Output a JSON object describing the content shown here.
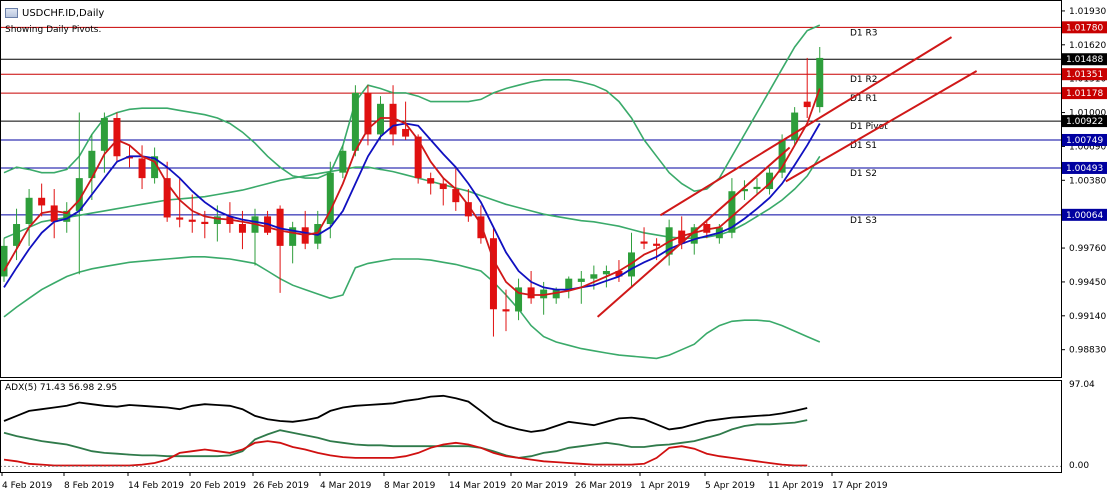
{
  "header": {
    "symbol_label": "USDCHF.ID,Daily",
    "subtitle": "Showing Daily Pivots."
  },
  "adx_label": "ADX(5) 71.43 56.98 2.95",
  "colors": {
    "bull": "#2e9e3b",
    "bear": "#e01010",
    "ma_fast": "#d01818",
    "ma_slow": "#1010c0",
    "bollinger": "#3aaa6a",
    "pivot_resistance": "#c80000",
    "pivot_support": "#0000a0",
    "pivot_black": "#000000",
    "trendline": "#d01818",
    "adx_main": "#000000",
    "adx_plus": "#2f7a4a",
    "adx_minus": "#d01010"
  },
  "chart_data": [
    {
      "type": "candlestick",
      "title": "USDCHF.ID,Daily",
      "ylim": [
        0.9858,
        1.0203
      ],
      "y_ticks": [
        "1.01930",
        "1.01620",
        "1.01310",
        "1.01000",
        "1.00690",
        "1.00380",
        "1.00070",
        "0.99760",
        "0.99450",
        "0.99140",
        "0.98830"
      ],
      "x_ticks": [
        "4 Feb 2019",
        "8 Feb 2019",
        "14 Feb 2019",
        "20 Feb 2019",
        "26 Feb 2019",
        "4 Mar 2019",
        "8 Mar 2019",
        "14 Mar 2019",
        "20 Mar 2019",
        "26 Mar 2019",
        "1 Apr 2019",
        "5 Apr 2019",
        "11 Apr 2019",
        "17 Apr 2019"
      ],
      "pivot_levels": [
        {
          "name": "D1 R3",
          "value": 1.0178,
          "label": "1.01780",
          "kind": "resistance"
        },
        {
          "name": "D1 R2",
          "value": 1.01351,
          "label": "1.01351",
          "kind": "resistance"
        },
        {
          "name": "D1 R1",
          "value": 1.01178,
          "label": "1.01178",
          "kind": "resistance"
        },
        {
          "name": "D1 Pivot",
          "value": 1.00922,
          "label": "1.00922",
          "kind": "black"
        },
        {
          "name": "D1 S1",
          "value": 1.00749,
          "label": "1.00749",
          "kind": "support"
        },
        {
          "name": "D1 S2",
          "value": 1.00493,
          "label": "1.00493",
          "kind": "support"
        },
        {
          "name": "D1 S3",
          "value": 1.00064,
          "label": "1.00064",
          "kind": "support"
        }
      ],
      "current_price": {
        "value": 1.01488,
        "label": "1.01488"
      },
      "candles": [
        {
          "o": 0.995,
          "h": 0.9985,
          "l": 0.9945,
          "c": 0.9978
        },
        {
          "o": 0.9978,
          "h": 1.0012,
          "l": 0.9965,
          "c": 0.9998
        },
        {
          "o": 0.9998,
          "h": 1.003,
          "l": 0.9978,
          "c": 1.0022
        },
        {
          "o": 1.0022,
          "h": 1.0035,
          "l": 1.0005,
          "c": 1.0015
        },
        {
          "o": 1.0015,
          "h": 1.003,
          "l": 0.9985,
          "c": 1.0
        },
        {
          "o": 1.0,
          "h": 1.0018,
          "l": 0.999,
          "c": 1.001
        },
        {
          "o": 1.001,
          "h": 1.01,
          "l": 0.9952,
          "c": 1.004
        },
        {
          "o": 1.004,
          "h": 1.008,
          "l": 1.002,
          "c": 1.0065
        },
        {
          "o": 1.0065,
          "h": 1.01,
          "l": 1.0045,
          "c": 1.0095
        },
        {
          "o": 1.0095,
          "h": 1.01,
          "l": 1.0055,
          "c": 1.006
        },
        {
          "o": 1.006,
          "h": 1.007,
          "l": 1.005,
          "c": 1.0058
        },
        {
          "o": 1.0058,
          "h": 1.007,
          "l": 1.003,
          "c": 1.004
        },
        {
          "o": 1.004,
          "h": 1.0068,
          "l": 1.0035,
          "c": 1.006
        },
        {
          "o": 1.004,
          "h": 1.0055,
          "l": 1.0,
          "c": 1.0004
        },
        {
          "o": 1.0004,
          "h": 1.004,
          "l": 0.9995,
          "c": 1.0002
        },
        {
          "o": 1.0002,
          "h": 1.0025,
          "l": 0.999,
          "c": 1.0
        },
        {
          "o": 1.0,
          "h": 1.001,
          "l": 0.9985,
          "c": 0.9998
        },
        {
          "o": 0.9998,
          "h": 1.0015,
          "l": 0.9982,
          "c": 1.0005
        },
        {
          "o": 1.0005,
          "h": 1.0018,
          "l": 0.999,
          "c": 0.9998
        },
        {
          "o": 0.9998,
          "h": 1.001,
          "l": 0.9975,
          "c": 0.999
        },
        {
          "o": 0.999,
          "h": 1.0012,
          "l": 0.996,
          "c": 1.0005
        },
        {
          "o": 1.0005,
          "h": 1.001,
          "l": 0.9988,
          "c": 0.999
        },
        {
          "o": 1.0012,
          "h": 1.0015,
          "l": 0.9935,
          "c": 0.9978
        },
        {
          "o": 0.9978,
          "h": 1.0,
          "l": 0.9962,
          "c": 0.9995
        },
        {
          "o": 0.9995,
          "h": 1.001,
          "l": 0.9975,
          "c": 0.998
        },
        {
          "o": 0.998,
          "h": 1.001,
          "l": 0.9975,
          "c": 0.9998
        },
        {
          "o": 0.9998,
          "h": 1.0055,
          "l": 0.9985,
          "c": 1.0045
        },
        {
          "o": 1.0045,
          "h": 1.007,
          "l": 1.004,
          "c": 1.0065
        },
        {
          "o": 1.0065,
          "h": 1.0125,
          "l": 1.006,
          "c": 1.0118
        },
        {
          "o": 1.0118,
          "h": 1.0125,
          "l": 1.007,
          "c": 1.008
        },
        {
          "o": 1.008,
          "h": 1.0115,
          "l": 1.0075,
          "c": 1.0108
        },
        {
          "o": 1.0108,
          "h": 1.0125,
          "l": 1.007,
          "c": 1.008
        },
        {
          "o": 1.0085,
          "h": 1.011,
          "l": 1.0075,
          "c": 1.0078
        },
        {
          "o": 1.0078,
          "h": 1.008,
          "l": 1.0035,
          "c": 1.004
        },
        {
          "o": 1.004,
          "h": 1.0045,
          "l": 1.0025,
          "c": 1.0035
        },
        {
          "o": 1.0035,
          "h": 1.004,
          "l": 1.0015,
          "c": 1.003
        },
        {
          "o": 1.003,
          "h": 1.005,
          "l": 1.001,
          "c": 1.0018
        },
        {
          "o": 1.0018,
          "h": 1.003,
          "l": 1.0,
          "c": 1.0005
        },
        {
          "o": 1.0005,
          "h": 1.0015,
          "l": 0.998,
          "c": 0.9985
        },
        {
          "o": 0.9985,
          "h": 0.9995,
          "l": 0.9895,
          "c": 0.992
        },
        {
          "o": 0.992,
          "h": 0.9938,
          "l": 0.99,
          "c": 0.9918
        },
        {
          "o": 0.9918,
          "h": 0.9948,
          "l": 0.991,
          "c": 0.994
        },
        {
          "o": 0.994,
          "h": 0.9955,
          "l": 0.9925,
          "c": 0.993
        },
        {
          "o": 0.993,
          "h": 0.9945,
          "l": 0.9915,
          "c": 0.9938
        },
        {
          "o": 0.993,
          "h": 0.994,
          "l": 0.9925,
          "c": 0.9938
        },
        {
          "o": 0.9938,
          "h": 0.995,
          "l": 0.993,
          "c": 0.9948
        },
        {
          "o": 0.9945,
          "h": 0.9955,
          "l": 0.9925,
          "c": 0.9948
        },
        {
          "o": 0.9948,
          "h": 0.996,
          "l": 0.9938,
          "c": 0.9952
        },
        {
          "o": 0.9952,
          "h": 0.996,
          "l": 0.994,
          "c": 0.9955
        },
        {
          "o": 0.9955,
          "h": 0.9965,
          "l": 0.9945,
          "c": 0.995
        },
        {
          "o": 0.995,
          "h": 0.999,
          "l": 0.994,
          "c": 0.9972
        },
        {
          "o": 0.9982,
          "h": 0.9995,
          "l": 0.9975,
          "c": 0.998
        },
        {
          "o": 0.998,
          "h": 0.9985,
          "l": 0.9965,
          "c": 0.9978
        },
        {
          "o": 0.997,
          "h": 1.0002,
          "l": 0.996,
          "c": 0.9995
        },
        {
          "o": 0.9992,
          "h": 1.0005,
          "l": 0.9975,
          "c": 0.998
        },
        {
          "o": 0.998,
          "h": 0.9998,
          "l": 0.997,
          "c": 0.9995
        },
        {
          "o": 0.9998,
          "h": 1.0002,
          "l": 0.9985,
          "c": 0.999
        },
        {
          "o": 0.9985,
          "h": 0.9998,
          "l": 0.998,
          "c": 0.9995
        },
        {
          "o": 0.999,
          "h": 1.004,
          "l": 0.9985,
          "c": 1.0028
        },
        {
          "o": 1.0028,
          "h": 1.0038,
          "l": 1.002,
          "c": 1.003
        },
        {
          "o": 1.003,
          "h": 1.004,
          "l": 1.0025,
          "c": 1.0032
        },
        {
          "o": 1.003,
          "h": 1.005,
          "l": 1.0025,
          "c": 1.0045
        },
        {
          "o": 1.0045,
          "h": 1.008,
          "l": 1.004,
          "c": 1.0075
        },
        {
          "o": 1.0075,
          "h": 1.0105,
          "l": 1.007,
          "c": 1.01
        },
        {
          "o": 1.011,
          "h": 1.015,
          "l": 1.0095,
          "c": 1.0105
        },
        {
          "o": 1.0105,
          "h": 1.016,
          "l": 1.01,
          "c": 1.015
        }
      ],
      "ma_fast": [
        0.9955,
        0.9975,
        0.9995,
        1.0008,
        1.001,
        1.0008,
        1.002,
        1.004,
        1.0062,
        1.0075,
        1.007,
        1.006,
        1.0055,
        1.0035,
        1.002,
        1.001,
        1.0005,
        1.0003,
        1.0002,
        1.0,
        0.9998,
        0.9995,
        0.9992,
        0.999,
        0.9988,
        0.999,
        1.001,
        1.0035,
        1.0065,
        1.0085,
        1.0095,
        1.0095,
        1.009,
        1.0075,
        1.0055,
        1.004,
        1.003,
        1.0015,
        0.9998,
        0.9965,
        0.9945,
        0.9935,
        0.9933,
        0.9933,
        0.9935,
        0.9937,
        0.994,
        0.9945,
        0.995,
        0.9955,
        0.9962,
        0.997,
        0.9975,
        0.9982,
        0.9987,
        0.999,
        0.9993,
        0.9995,
        1.0005,
        1.0015,
        1.0025,
        1.0035,
        1.005,
        1.007,
        1.009,
        1.0122
      ],
      "ma_slow": [
        0.994,
        0.9958,
        0.9975,
        0.999,
        1.0,
        1.0003,
        1.001,
        1.0025,
        1.004,
        1.0055,
        1.006,
        1.006,
        1.0058,
        1.005,
        1.004,
        1.0028,
        1.0018,
        1.001,
        1.0005,
        1.0002,
        1.0,
        0.9998,
        0.9994,
        0.9992,
        0.999,
        0.9988,
        0.9995,
        1.001,
        1.0035,
        1.006,
        1.0078,
        1.0088,
        1.009,
        1.0088,
        1.0075,
        1.0062,
        1.005,
        1.0035,
        1.0018,
        0.9995,
        0.9972,
        0.9955,
        0.9945,
        0.994,
        0.9938,
        0.9938,
        0.994,
        0.9942,
        0.9946,
        0.995,
        0.9957,
        0.9963,
        0.9968,
        0.9975,
        0.998,
        0.9984,
        0.9987,
        0.999,
        0.9995,
        1.0003,
        1.0012,
        1.0022,
        1.0035,
        1.0052,
        1.007,
        1.009
      ],
      "bb_upper": [
        1.0045,
        1.005,
        1.0048,
        1.0045,
        1.0045,
        1.0048,
        1.006,
        1.008,
        1.0095,
        1.01,
        1.0103,
        1.0104,
        1.0104,
        1.0104,
        1.0102,
        1.01,
        1.0098,
        1.0095,
        1.009,
        1.0082,
        1.0072,
        1.006,
        1.005,
        1.0042,
        1.004,
        1.004,
        1.0045,
        1.007,
        1.011,
        1.0125,
        1.0122,
        1.0118,
        1.0118,
        1.0115,
        1.011,
        1.011,
        1.011,
        1.011,
        1.0112,
        1.0118,
        1.0122,
        1.0125,
        1.0128,
        1.013,
        1.013,
        1.013,
        1.0128,
        1.0125,
        1.012,
        1.011,
        1.0095,
        1.0075,
        1.006,
        1.0045,
        1.0035,
        1.0028,
        1.003,
        1.004,
        1.006,
        1.008,
        1.01,
        1.012,
        1.014,
        1.016,
        1.0175,
        1.018
      ],
      "bb_mid": [
        0.9985,
        0.999,
        0.9995,
        1.0,
        1.0002,
        1.0004,
        1.0006,
        1.0008,
        1.001,
        1.0012,
        1.0014,
        1.0016,
        1.0018,
        1.002,
        1.0021,
        1.0022,
        1.0023,
        1.0025,
        1.0027,
        1.0029,
        1.0032,
        1.0035,
        1.0038,
        1.004,
        1.0042,
        1.0044,
        1.0046,
        1.0048,
        1.005,
        1.005,
        1.0048,
        1.0046,
        1.0043,
        1.004,
        1.0037,
        1.0034,
        1.0031,
        1.0028,
        1.0024,
        1.002,
        1.0016,
        1.0013,
        1.001,
        1.0007,
        1.0005,
        1.0003,
        1.0001,
        1.0,
        0.9998,
        0.9996,
        0.9993,
        0.999,
        0.9988,
        0.9986,
        0.9985,
        0.9985,
        0.9986,
        0.9988,
        0.9992,
        0.9998,
        1.0005,
        1.0012,
        1.002,
        1.003,
        1.0042,
        1.006
      ],
      "bb_lower": [
        0.9913,
        0.9922,
        0.993,
        0.9938,
        0.9944,
        0.995,
        0.9954,
        0.9957,
        0.9959,
        0.9961,
        0.9963,
        0.9964,
        0.9965,
        0.9966,
        0.9967,
        0.9968,
        0.9968,
        0.9967,
        0.9966,
        0.9964,
        0.9962,
        0.9955,
        0.9948,
        0.9942,
        0.9938,
        0.9934,
        0.993,
        0.9933,
        0.9958,
        0.9962,
        0.9964,
        0.9966,
        0.9966,
        0.9966,
        0.9965,
        0.9963,
        0.9961,
        0.9958,
        0.9955,
        0.9945,
        0.9933,
        0.992,
        0.9905,
        0.9895,
        0.989,
        0.9887,
        0.9884,
        0.9882,
        0.988,
        0.9878,
        0.9877,
        0.9876,
        0.9875,
        0.9878,
        0.9883,
        0.9888,
        0.9898,
        0.9905,
        0.9909,
        0.991,
        0.991,
        0.9909,
        0.9905,
        0.99,
        0.9895,
        0.989
      ],
      "trendlines": [
        {
          "from": [
            47.3,
            0.9913
          ],
          "to": [
            62.6,
            1.0068
          ]
        },
        {
          "from": [
            52.3,
            1.0006
          ],
          "to": [
            75.5,
            1.0169
          ]
        },
        {
          "from": [
            62.3,
            1.0037
          ],
          "to": [
            77.5,
            1.0138
          ]
        }
      ]
    },
    {
      "type": "line",
      "title": "ADX(5) 71.43 56.98 2.95",
      "ylim": [
        0,
        100
      ],
      "y_ticks": [
        "97.04",
        "0.00"
      ],
      "series": [
        {
          "values": [
            56,
            62,
            68,
            70,
            72,
            74,
            78,
            76,
            74,
            73,
            75,
            74,
            73,
            72,
            70,
            74,
            76,
            75,
            74,
            70,
            62,
            58,
            56,
            55,
            57,
            60,
            68,
            72,
            74,
            75,
            76,
            77,
            80,
            82,
            85,
            86,
            83,
            79,
            68,
            56,
            50,
            46,
            43,
            45,
            50,
            55,
            53,
            51,
            55,
            59,
            60,
            58,
            52,
            46,
            48,
            52,
            56,
            58,
            60,
            61,
            62,
            63,
            65,
            68,
            71.43
          ]
        },
        {
          "values": [
            42,
            38,
            35,
            32,
            30,
            28,
            24,
            20,
            18,
            17,
            16,
            15,
            15,
            14,
            14,
            14,
            14,
            14,
            15,
            20,
            34,
            40,
            45,
            42,
            39,
            36,
            32,
            30,
            28,
            27,
            27,
            26,
            26,
            26,
            26,
            26,
            26,
            26,
            24,
            20,
            15,
            12,
            14,
            18,
            20,
            24,
            26,
            28,
            30,
            28,
            25,
            25,
            27,
            28,
            30,
            32,
            36,
            40,
            46,
            50,
            52,
            52,
            53,
            54,
            56.98
          ]
        },
        {
          "values": [
            10,
            8,
            5,
            4,
            3,
            3,
            3,
            3,
            3,
            3,
            3,
            4,
            6,
            10,
            18,
            20,
            22,
            20,
            18,
            22,
            30,
            32,
            30,
            25,
            22,
            18,
            15,
            13,
            12,
            12,
            12,
            12,
            14,
            18,
            24,
            28,
            30,
            28,
            24,
            18,
            14,
            12,
            10,
            8,
            7,
            6,
            5,
            4,
            4,
            4,
            4,
            5,
            12,
            24,
            26,
            23,
            17,
            14,
            12,
            10,
            8,
            6,
            4,
            3,
            2.95
          ]
        }
      ]
    }
  ]
}
